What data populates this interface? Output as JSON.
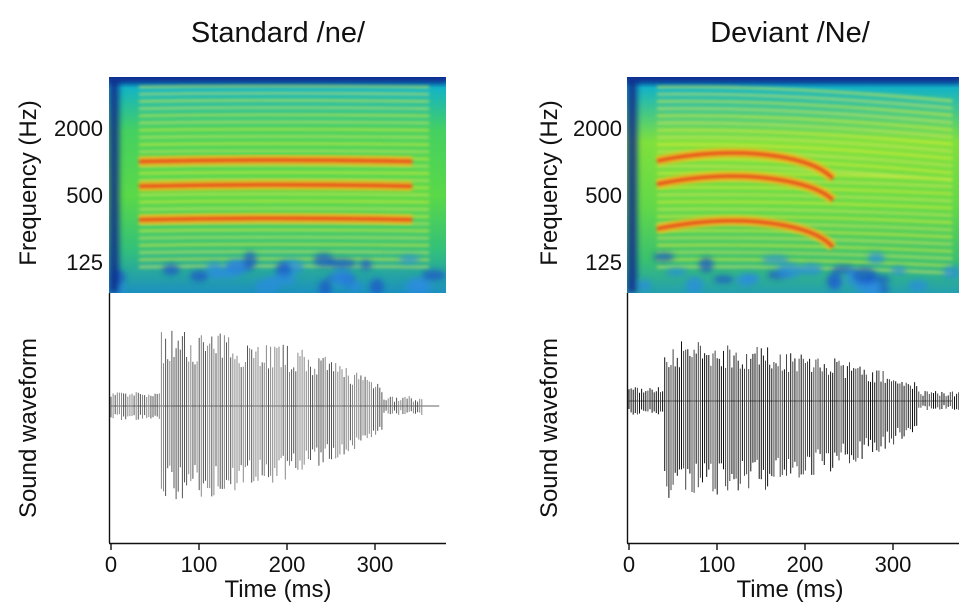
{
  "chart_data": [
    {
      "type": "spectrogram-waveform",
      "title": "Standard /ne/",
      "spectrogram": {
        "ylabel": "Frequency (Hz)",
        "yscale": "log",
        "y_ticks": [
          "2000",
          "500",
          "125"
        ],
        "colormap": "jet",
        "formants_hz": [
          {
            "start": 300,
            "end": 300
          },
          {
            "start": 600,
            "end": 600
          },
          {
            "start": 1000,
            "end": 1000
          }
        ]
      },
      "waveform": {
        "ylabel": "Sound waveform",
        "onset_ms": 0,
        "burst_ms": 55,
        "offset_ms": 355
      },
      "xlabel": "Time (ms)",
      "x_ticks": [
        "0",
        "100",
        "200",
        "300"
      ],
      "xlim": [
        0,
        380
      ]
    },
    {
      "type": "spectrogram-waveform",
      "title": "Deviant /Ne/",
      "spectrogram": {
        "ylabel": "Frequency (Hz)",
        "yscale": "log",
        "y_ticks": [
          "2000",
          "500",
          "125"
        ],
        "colormap": "jet",
        "formants_hz": [
          {
            "start": 270,
            "end": 170
          },
          {
            "start": 680,
            "end": 450
          },
          {
            "start": 1100,
            "end": 700
          }
        ]
      },
      "waveform": {
        "ylabel": "Sound waveform",
        "onset_ms": 0,
        "burst_ms": 40,
        "offset_ms": 380
      },
      "xlabel": "Time (ms)",
      "x_ticks": [
        "0",
        "100",
        "200",
        "300"
      ],
      "xlim": [
        0,
        380
      ]
    }
  ]
}
